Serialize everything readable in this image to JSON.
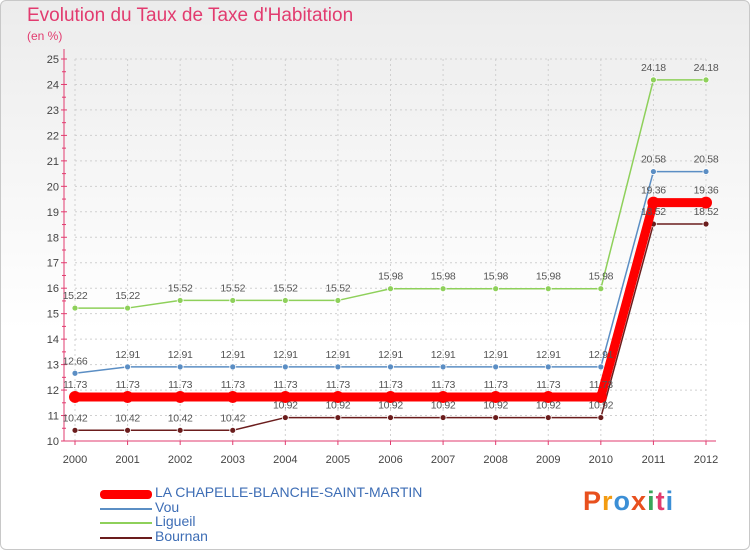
{
  "header": {
    "title": "Evolution du Taux de Taxe d'Habitation",
    "subtitle": "(en %)"
  },
  "logo": {
    "text": "Proxiti",
    "colors": [
      "#e8501e",
      "#f39c12",
      "#3b8fd6",
      "#e8501e",
      "#3aa55a",
      "#e23b6f",
      "#3b8fd6"
    ]
  },
  "chart_data": {
    "type": "line",
    "title": "Evolution du Taux de Taxe d'Habitation",
    "ylabel": "(en %)",
    "xlabel": "",
    "x": [
      "2000",
      "2001",
      "2002",
      "2003",
      "2004",
      "2005",
      "2006",
      "2007",
      "2008",
      "2009",
      "2010",
      "2011",
      "2012"
    ],
    "ylim": [
      10,
      25
    ],
    "yticks": [
      10,
      11,
      12,
      13,
      14,
      15,
      16,
      17,
      18,
      19,
      20,
      21,
      22,
      23,
      24,
      25
    ],
    "grid": true,
    "legend_position": "bottom-left",
    "series": [
      {
        "name": "LA CHAPELLE-BLANCHE-SAINT-MARTIN",
        "color": "#ff0000",
        "style": "thick",
        "values": [
          11.73,
          11.73,
          11.73,
          11.73,
          11.73,
          11.73,
          11.73,
          11.73,
          11.73,
          11.73,
          11.73,
          19.36,
          19.36
        ],
        "labels": [
          "11.73",
          "11.73",
          "11.73",
          "11.73",
          "11.73",
          "11.73",
          "11.73",
          "11.73",
          "11.73",
          "11.73",
          "11.73",
          "19.36",
          "19.36"
        ]
      },
      {
        "name": "Vou",
        "color": "#5b8ec4",
        "style": "thin",
        "values": [
          12.66,
          12.91,
          12.91,
          12.91,
          12.91,
          12.91,
          12.91,
          12.91,
          12.91,
          12.91,
          12.91,
          20.58,
          20.58
        ],
        "labels": [
          "12.66",
          "12.91",
          "12.91",
          "12.91",
          "12.91",
          "12.91",
          "12.91",
          "12.91",
          "12.91",
          "12.91",
          "12.91",
          "20.58",
          "20.58"
        ]
      },
      {
        "name": "Ligueil",
        "color": "#8ed05a",
        "style": "thin",
        "values": [
          15.22,
          15.22,
          15.52,
          15.52,
          15.52,
          15.52,
          15.98,
          15.98,
          15.98,
          15.98,
          15.98,
          24.18,
          24.18
        ],
        "labels": [
          "15.22",
          "15.22",
          "15.52",
          "15.52",
          "15.52",
          "15.52",
          "15.98",
          "15.98",
          "15.98",
          "15.98",
          "15.98",
          "24.18",
          "24.18"
        ]
      },
      {
        "name": "Bournan",
        "color": "#6b1d1d",
        "style": "thin",
        "values": [
          10.42,
          10.42,
          10.42,
          10.42,
          10.92,
          10.92,
          10.92,
          10.92,
          10.92,
          10.92,
          10.92,
          18.52,
          18.52
        ],
        "labels": [
          "10.42",
          "10.42",
          "10.42",
          "10.42",
          "10.92",
          "10.92",
          "10.92",
          "10.92",
          "10.92",
          "10.92",
          "10.92",
          "18.52",
          "18.52"
        ]
      }
    ]
  }
}
